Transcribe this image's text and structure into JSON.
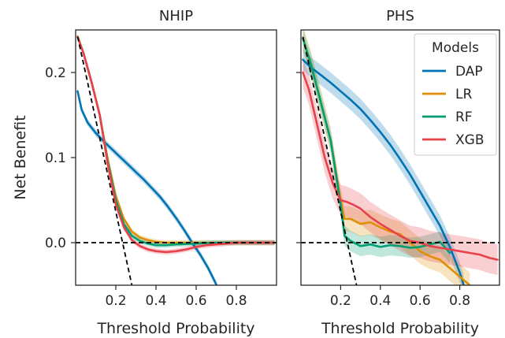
{
  "chart_data": {
    "type": "line",
    "ylabel": "Net Benefit",
    "xlabel": "Threshold Probability",
    "xlim": [
      0.0,
      1.0
    ],
    "ylim": [
      -0.05,
      0.25
    ],
    "x_ticks": [
      0.2,
      0.4,
      0.6,
      0.8
    ],
    "x_tick_labels": [
      "0.2",
      "0.4",
      "0.6",
      "0.8"
    ],
    "y_ticks": [
      0.0,
      0.1,
      0.2
    ],
    "y_tick_labels": [
      "0.0",
      "0.1",
      "0.2"
    ],
    "grid": false,
    "legend": {
      "title": "Models",
      "placement": "top-right",
      "panel": "PHS",
      "entries": [
        "DAP",
        "LR",
        "RF",
        "XGB"
      ]
    },
    "colors": {
      "DAP": "#0173b2",
      "LR": "#de8f05",
      "RF": "#029e73",
      "XGB": "#e8414a",
      "reference": "#000000"
    },
    "panels": [
      {
        "title": "NHIP",
        "series": [
          {
            "name": "DAP",
            "x": [
              0.01,
              0.03,
              0.06,
              0.1,
              0.14,
              0.18,
              0.22,
              0.26,
              0.3,
              0.34,
              0.38,
              0.42,
              0.46,
              0.5,
              0.54,
              0.58,
              0.62,
              0.66,
              0.7
            ],
            "y": [
              0.178,
              0.156,
              0.141,
              0.129,
              0.119,
              0.11,
              0.101,
              0.092,
              0.083,
              0.074,
              0.064,
              0.054,
              0.042,
              0.029,
              0.015,
              0.0,
              -0.014,
              -0.03,
              -0.049
            ],
            "band": 0.004
          },
          {
            "name": "LR",
            "x": [
              0.01,
              0.04,
              0.08,
              0.12,
              0.16,
              0.2,
              0.24,
              0.28,
              0.32,
              0.36,
              0.4,
              0.45,
              0.5,
              0.6,
              0.7,
              0.8,
              0.9,
              0.99
            ],
            "y": [
              0.242,
              0.222,
              0.188,
              0.15,
              0.098,
              0.055,
              0.028,
              0.013,
              0.006,
              0.003,
              0.001,
              0.0,
              0.0,
              0.0,
              0.0,
              0.0,
              0.0,
              0.0
            ],
            "band": 0.003
          },
          {
            "name": "RF",
            "x": [
              0.01,
              0.04,
              0.08,
              0.12,
              0.16,
              0.2,
              0.24,
              0.28,
              0.32,
              0.36,
              0.4,
              0.45,
              0.5,
              0.6,
              0.7,
              0.8,
              0.9,
              0.99
            ],
            "y": [
              0.242,
              0.222,
              0.188,
              0.15,
              0.095,
              0.05,
              0.022,
              0.008,
              0.002,
              -0.001,
              -0.003,
              -0.003,
              -0.002,
              -0.001,
              0.0,
              0.0,
              0.0,
              0.0
            ],
            "band": 0.003
          },
          {
            "name": "XGB",
            "x": [
              0.01,
              0.04,
              0.08,
              0.12,
              0.16,
              0.2,
              0.24,
              0.28,
              0.32,
              0.36,
              0.4,
              0.45,
              0.5,
              0.55,
              0.6,
              0.65,
              0.7,
              0.8,
              0.9,
              0.99
            ],
            "y": [
              0.242,
              0.222,
              0.188,
              0.15,
              0.092,
              0.045,
              0.018,
              0.003,
              -0.004,
              -0.008,
              -0.01,
              -0.011,
              -0.01,
              -0.008,
              -0.005,
              -0.003,
              -0.002,
              0.0,
              0.0,
              0.0
            ],
            "band": 0.003
          }
        ]
      },
      {
        "title": "PHS",
        "series": [
          {
            "name": "DAP",
            "x": [
              0.01,
              0.05,
              0.1,
              0.15,
              0.2,
              0.25,
              0.3,
              0.35,
              0.4,
              0.45,
              0.5,
              0.55,
              0.6,
              0.65,
              0.7,
              0.75,
              0.8,
              0.82
            ],
            "y": [
              0.215,
              0.206,
              0.197,
              0.188,
              0.178,
              0.168,
              0.157,
              0.144,
              0.13,
              0.115,
              0.098,
              0.08,
              0.06,
              0.04,
              0.02,
              -0.005,
              -0.035,
              -0.05
            ],
            "band": 0.012
          },
          {
            "name": "LR",
            "x": [
              0.01,
              0.05,
              0.1,
              0.15,
              0.2,
              0.22,
              0.25,
              0.3,
              0.35,
              0.4,
              0.45,
              0.5,
              0.55,
              0.6,
              0.65,
              0.7,
              0.75,
              0.8,
              0.85
            ],
            "y": [
              0.24,
              0.21,
              0.165,
              0.12,
              0.05,
              0.028,
              0.028,
              0.022,
              0.024,
              0.018,
              0.013,
              0.01,
              0.0,
              -0.01,
              -0.016,
              -0.02,
              -0.03,
              -0.04,
              -0.05
            ],
            "band": 0.015
          },
          {
            "name": "RF",
            "x": [
              0.01,
              0.05,
              0.1,
              0.15,
              0.2,
              0.22,
              0.25,
              0.3,
              0.35,
              0.4,
              0.45,
              0.5,
              0.55,
              0.6,
              0.65,
              0.7,
              0.75
            ],
            "y": [
              0.24,
              0.21,
              0.165,
              0.12,
              0.045,
              0.008,
              0.002,
              -0.004,
              -0.002,
              -0.005,
              -0.003,
              -0.004,
              -0.006,
              -0.005,
              -0.002,
              0.001,
              -0.012
            ],
            "band": 0.012
          },
          {
            "name": "XGB",
            "x": [
              0.01,
              0.04,
              0.08,
              0.12,
              0.16,
              0.2,
              0.23,
              0.26,
              0.3,
              0.35,
              0.4,
              0.45,
              0.5,
              0.55,
              0.6,
              0.65,
              0.7,
              0.75,
              0.8,
              0.85,
              0.9,
              0.95,
              0.99
            ],
            "y": [
              0.2,
              0.18,
              0.14,
              0.1,
              0.07,
              0.05,
              0.048,
              0.045,
              0.04,
              0.03,
              0.022,
              0.015,
              0.008,
              0.002,
              0.0,
              -0.004,
              -0.006,
              -0.008,
              -0.01,
              -0.012,
              -0.014,
              -0.018,
              -0.02
            ],
            "band": 0.018
          }
        ]
      }
    ],
    "reference_lines": [
      {
        "name": "treat-all",
        "style": "dashed",
        "x": [
          0.01,
          0.28
        ],
        "y": [
          0.242,
          -0.05
        ]
      },
      {
        "name": "treat-none",
        "style": "dashed",
        "x": [
          0.0,
          1.0
        ],
        "y": [
          0.0,
          0.0
        ]
      }
    ]
  }
}
